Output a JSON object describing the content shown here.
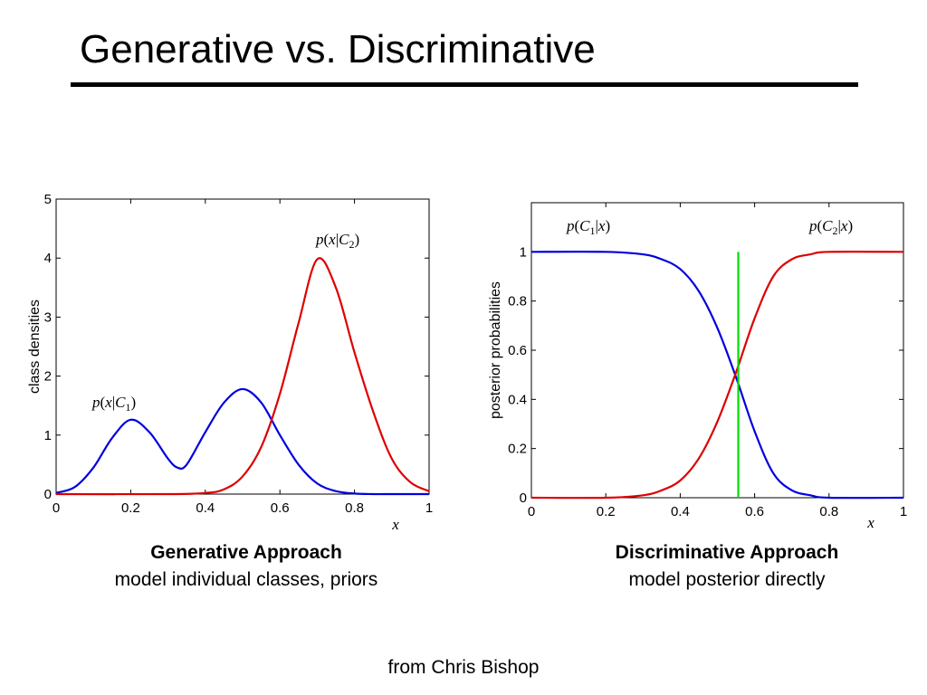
{
  "slide": {
    "title": "Generative vs. Discriminative",
    "credit": "from Chris Bishop"
  },
  "captions": [
    {
      "heading": "Generative Approach",
      "text": "model individual classes, priors"
    },
    {
      "heading": "Discriminative Approach",
      "text": "model posterior directly"
    }
  ],
  "chart_data": [
    {
      "type": "line",
      "xlabel": "x",
      "ylabel": "class densities",
      "xlim": [
        0,
        1
      ],
      "ylim": [
        0,
        5
      ],
      "xticks": [
        "0",
        "0.2",
        "0.4",
        "0.6",
        "0.8",
        "1"
      ],
      "yticks": [
        "0",
        "1",
        "2",
        "3",
        "4",
        "5"
      ],
      "grid": false,
      "series": [
        {
          "name": "p(x|C1)",
          "color": "#0000dd",
          "x": [
            0,
            0.05,
            0.1,
            0.15,
            0.2,
            0.25,
            0.3,
            0.325,
            0.35,
            0.4,
            0.45,
            0.5,
            0.55,
            0.6,
            0.65,
            0.7,
            0.75,
            0.8,
            0.85,
            0.9,
            1.0
          ],
          "y": [
            0.02,
            0.12,
            0.45,
            0.95,
            1.26,
            1.05,
            0.6,
            0.45,
            0.5,
            1.05,
            1.55,
            1.78,
            1.55,
            1.0,
            0.5,
            0.18,
            0.05,
            0.01,
            0,
            0,
            0
          ]
        },
        {
          "name": "p(x|C2)",
          "color": "#dd0000",
          "x": [
            0,
            0.3,
            0.4,
            0.45,
            0.5,
            0.55,
            0.6,
            0.65,
            0.7,
            0.75,
            0.8,
            0.85,
            0.9,
            0.95,
            1.0
          ],
          "y": [
            0,
            0,
            0.02,
            0.08,
            0.3,
            0.8,
            1.7,
            2.9,
            3.98,
            3.5,
            2.4,
            1.4,
            0.6,
            0.2,
            0.05
          ]
        }
      ],
      "labels": [
        {
          "text": "p(x|C2)",
          "x": 0.7,
          "y": 4.2
        },
        {
          "text": "p(x|C1)",
          "x": 0.16,
          "y": 1.5
        }
      ]
    },
    {
      "type": "line",
      "xlabel": "x",
      "ylabel": "posterior probabilities",
      "xlim": [
        0,
        1
      ],
      "ylim": [
        0,
        1.2
      ],
      "xticks": [
        "0",
        "0.2",
        "0.4",
        "0.6",
        "0.8",
        "1"
      ],
      "yticks": [
        "0",
        "0.2",
        "0.4",
        "0.6",
        "0.8",
        "1"
      ],
      "grid": false,
      "series": [
        {
          "name": "p(C1|x)",
          "color": "#0000dd",
          "x": [
            0,
            0.2,
            0.3,
            0.35,
            0.4,
            0.45,
            0.5,
            0.55,
            0.6,
            0.65,
            0.7,
            0.75,
            0.8,
            1.0
          ],
          "y": [
            1,
            1,
            0.99,
            0.97,
            0.93,
            0.84,
            0.69,
            0.49,
            0.27,
            0.1,
            0.03,
            0.01,
            0,
            0
          ]
        },
        {
          "name": "p(C2|x)",
          "color": "#dd0000",
          "x": [
            0,
            0.2,
            0.3,
            0.35,
            0.4,
            0.45,
            0.5,
            0.55,
            0.6,
            0.65,
            0.7,
            0.75,
            0.8,
            1.0
          ],
          "y": [
            0,
            0,
            0.01,
            0.03,
            0.07,
            0.16,
            0.31,
            0.51,
            0.73,
            0.9,
            0.97,
            0.99,
            1,
            1
          ]
        },
        {
          "name": "decision boundary",
          "color": "#00dd00",
          "x": [
            0.556,
            0.556
          ],
          "y": [
            0,
            1
          ]
        }
      ],
      "labels": [
        {
          "text": "p(C1|x)",
          "x": 0.1,
          "y": 1.1
        },
        {
          "text": "p(C2|x)",
          "x": 0.82,
          "y": 1.1
        }
      ]
    }
  ]
}
